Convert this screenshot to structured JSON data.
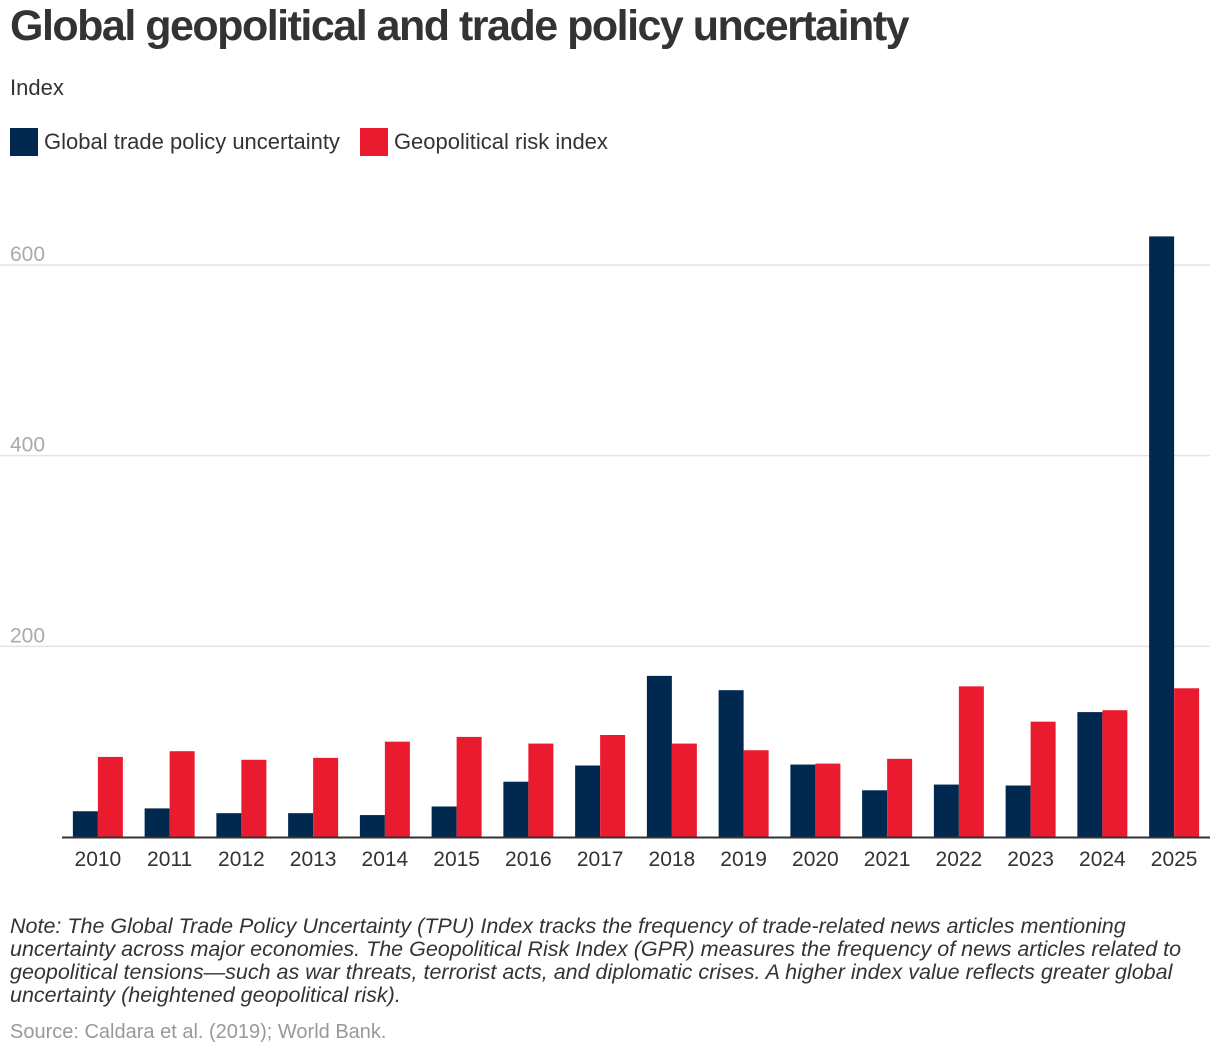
{
  "header": {
    "title": "Global geopolitical and trade policy uncertainty",
    "subtitle": "Index"
  },
  "legend": {
    "items": [
      {
        "label": "Global trade policy uncertainty",
        "color": "#01294f"
      },
      {
        "label": "Geopolitical risk index",
        "color": "#eb1b2f"
      }
    ]
  },
  "chart_data": {
    "type": "bar",
    "categories": [
      "2010",
      "2011",
      "2012",
      "2013",
      "2014",
      "2015",
      "2016",
      "2017",
      "2018",
      "2019",
      "2020",
      "2021",
      "2022",
      "2023",
      "2024",
      "2025"
    ],
    "series": [
      {
        "name": "Global trade policy uncertainty",
        "color": "#01294f",
        "values": [
          27,
          30,
          25,
          25,
          23,
          32,
          58,
          75,
          169,
          154,
          76,
          49,
          55,
          54,
          131,
          630
        ]
      },
      {
        "name": "Geopolitical risk index",
        "color": "#eb1b2f",
        "values": [
          84,
          90,
          81,
          83,
          100,
          105,
          98,
          107,
          98,
          91,
          77,
          82,
          158,
          121,
          133,
          156
        ]
      }
    ],
    "yticks": [
      "200",
      "400",
      "600"
    ],
    "ylim": [
      0,
      650
    ],
    "grid": true,
    "legend_position": "top-left"
  },
  "footer": {
    "note": "Note: The Global Trade Policy Uncertainty (TPU) Index tracks the frequency of trade-related news articles mentioning uncertainty across major economies. The Geopolitical Risk Index (GPR) measures the frequency of news articles related to geopolitical tensions—such as war threats, terrorist acts, and diplomatic crises. A higher index value reflects greater global uncertainty (heightened geopolitical risk).",
    "source": "Source: Caldara et al. (2019); World Bank."
  }
}
